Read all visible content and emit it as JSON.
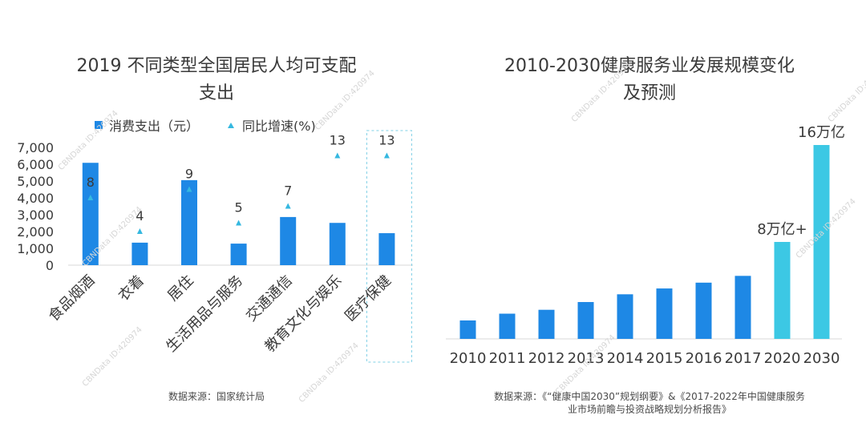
{
  "left_chart": {
    "title_line1": "2019 不同类型全国居民人均可支配",
    "title_line2": "支出",
    "legend_bar": "消费支出（元）",
    "legend_marker": "同比增速(%)",
    "source": "数据来源：国家统计局"
  },
  "right_chart": {
    "title_line1": "2010-2030健康服务业发展规模变化",
    "title_line2": "及预测",
    "source_line1": "数据来源：《“健康中国2030”规划纲要》&《2017-2022年中国健康服务",
    "source_line2": "业市场前瞻与投资战略规划分析报告》"
  },
  "watermark_text": "CBNData ID:420974",
  "colors": {
    "bar": "#1e88e5",
    "bar_forecast": "#3cc8e4",
    "marker": "#35b8e0",
    "highlight_box": "#7fd0e6"
  },
  "chart_data": [
    {
      "type": "bar",
      "categories": [
        "食品烟酒",
        "衣着",
        "居住",
        "生活用品与服务",
        "交通通信",
        "教育文化与娱乐",
        "医疗保健"
      ],
      "series": [
        {
          "name": "消费支出（元）",
          "values": [
            6084,
            1338,
            5055,
            1281,
            2862,
            2513,
            1902
          ]
        },
        {
          "name": "同比增速(%)",
          "type": "scatter",
          "values": [
            8,
            4,
            9,
            5,
            7,
            13,
            13
          ]
        }
      ],
      "yticks": [
        "0",
        "1,000",
        "2,000",
        "3,000",
        "4,000",
        "5,000",
        "6,000",
        "7,000"
      ],
      "ylim": [
        0,
        7000
      ],
      "highlighted_category": "医疗保健"
    },
    {
      "type": "bar",
      "categories": [
        "2010",
        "2011",
        "2012",
        "2013",
        "2014",
        "2015",
        "2016",
        "2017",
        "2020",
        "2030"
      ],
      "relative_values": [
        0.19,
        0.26,
        0.3,
        0.38,
        0.46,
        0.52,
        0.58,
        0.65,
        1.0,
        2.0
      ],
      "forecast_categories": [
        "2020",
        "2030"
      ],
      "data_labels": {
        "2020": "8万亿+",
        "2030": "16万亿"
      }
    }
  ]
}
